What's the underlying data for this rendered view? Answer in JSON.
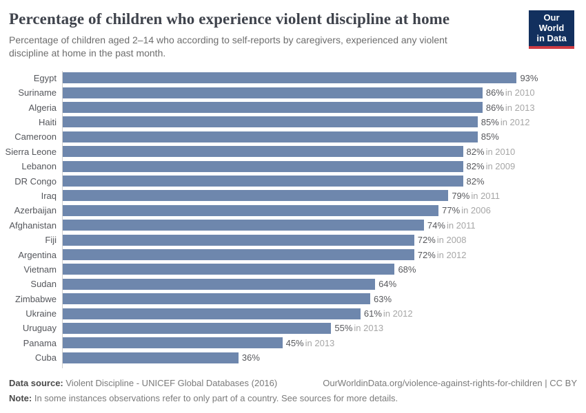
{
  "header": {
    "title": "Percentage of children who experience violent discipline at home",
    "subtitle": "Percentage of children aged 2–14 who according to self-reports by caregivers, experienced any violent discipline at home in the past month.",
    "logo": {
      "line1": "Our World",
      "line2": "in Data"
    }
  },
  "chart_data": {
    "type": "bar",
    "orientation": "horizontal",
    "unit": "%",
    "xlim": [
      0,
      100
    ],
    "grid": false,
    "categories": [
      "Egypt",
      "Suriname",
      "Algeria",
      "Haiti",
      "Cameroon",
      "Sierra Leone",
      "Lebanon",
      "DR Congo",
      "Iraq",
      "Azerbaijan",
      "Afghanistan",
      "Fiji",
      "Argentina",
      "Vietnam",
      "Sudan",
      "Zimbabwe",
      "Ukraine",
      "Uruguay",
      "Panama",
      "Cuba"
    ],
    "values": [
      93,
      86,
      86,
      85,
      85,
      82,
      82,
      82,
      79,
      77,
      74,
      72,
      72,
      68,
      64,
      63,
      61,
      55,
      45,
      36
    ],
    "year_notes": [
      "",
      "in 2010",
      "in 2013",
      "in 2012",
      "",
      "in 2010",
      "in 2009",
      "",
      "in 2011",
      "in 2006",
      "in 2011",
      "in 2008",
      "in 2012",
      "",
      "",
      "",
      "in 2012",
      "in 2013",
      "in 2013",
      ""
    ],
    "bar_color": "#6e87ad"
  },
  "footer": {
    "data_source_label": "Data source:",
    "data_source_text": "Violent Discipline - UNICEF Global Databases (2016)",
    "attribution": "OurWorldinData.org/violence-against-rights-for-children | CC BY",
    "note_label": "Note:",
    "note_text": "In some instances observations refer to only part of a country. See sources for more details."
  },
  "colors": {
    "bar": "#6e87ad",
    "axis_line": "#cfcfcf",
    "logo_background": "#12305e",
    "logo_accent_red": "#cf3b43",
    "title_text": "#3f434c",
    "year_note_text": "#a6a6a6"
  }
}
